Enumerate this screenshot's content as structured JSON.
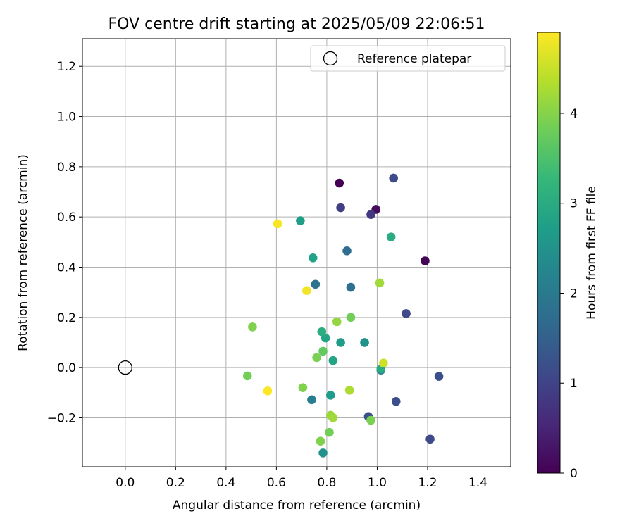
{
  "chart_data": {
    "type": "scatter",
    "title": "FOV centre drift starting at 2025/05/09 22:06:51",
    "xlabel": "Angular distance from reference (arcmin)",
    "ylabel": "Rotation from reference (arcmin)",
    "xlim": [
      -0.17,
      1.53
    ],
    "ylim": [
      -0.395,
      1.31
    ],
    "xticks": [
      0.0,
      0.2,
      0.4,
      0.6,
      0.8,
      1.0,
      1.2,
      1.4
    ],
    "yticks": [
      -0.2,
      0.0,
      0.2,
      0.4,
      0.6,
      0.8,
      1.0,
      1.2
    ],
    "xtick_labels": [
      "0.0",
      "0.2",
      "0.4",
      "0.6",
      "0.8",
      "1.0",
      "1.2",
      "1.4"
    ],
    "ytick_labels": [
      "−0.2",
      "0.0",
      "0.2",
      "0.4",
      "0.6",
      "0.8",
      "1.0",
      "1.2"
    ],
    "grid": true,
    "legend": {
      "position": "top-right",
      "label": "Reference platepar"
    },
    "reference_point": {
      "x": 0.0,
      "y": 0.0
    },
    "colorbar": {
      "label": "Hours from first FF file",
      "range": [
        0,
        4.9
      ],
      "ticks": [
        0,
        1,
        2,
        3,
        4
      ],
      "tick_labels": [
        "0",
        "1",
        "2",
        "3",
        "4"
      ],
      "colormap": "viridis"
    },
    "points": [
      {
        "x": 0.85,
        "y": 0.735,
        "c": 0.0
      },
      {
        "x": 1.19,
        "y": 0.425,
        "c": 0.05
      },
      {
        "x": 0.995,
        "y": 0.63,
        "c": 0.15
      },
      {
        "x": 0.975,
        "y": 0.61,
        "c": 0.8
      },
      {
        "x": 0.855,
        "y": 0.637,
        "c": 0.9
      },
      {
        "x": 1.065,
        "y": 0.755,
        "c": 1.1
      },
      {
        "x": 1.115,
        "y": 0.215,
        "c": 1.1
      },
      {
        "x": 1.21,
        "y": -0.285,
        "c": 1.1
      },
      {
        "x": 1.245,
        "y": -0.035,
        "c": 1.2
      },
      {
        "x": 1.075,
        "y": -0.135,
        "c": 1.2
      },
      {
        "x": 0.965,
        "y": -0.195,
        "c": 1.2
      },
      {
        "x": 0.88,
        "y": 0.465,
        "c": 1.75
      },
      {
        "x": 0.895,
        "y": 0.32,
        "c": 1.8
      },
      {
        "x": 0.755,
        "y": 0.332,
        "c": 1.85
      },
      {
        "x": 0.74,
        "y": -0.128,
        "c": 2.1
      },
      {
        "x": 1.015,
        "y": -0.01,
        "c": 2.1
      },
      {
        "x": 0.785,
        "y": -0.34,
        "c": 2.5
      },
      {
        "x": 0.95,
        "y": 0.1,
        "c": 2.5
      },
      {
        "x": 0.855,
        "y": 0.1,
        "c": 2.7
      },
      {
        "x": 0.815,
        "y": -0.11,
        "c": 2.7
      },
      {
        "x": 0.695,
        "y": 0.585,
        "c": 2.75
      },
      {
        "x": 0.745,
        "y": 0.437,
        "c": 2.8
      },
      {
        "x": 0.795,
        "y": 0.118,
        "c": 2.85
      },
      {
        "x": 0.825,
        "y": 0.028,
        "c": 2.85
      },
      {
        "x": 1.055,
        "y": 0.52,
        "c": 3.0
      },
      {
        "x": 0.78,
        "y": 0.143,
        "c": 3.05
      },
      {
        "x": 1.015,
        "y": -0.005,
        "c": 3.0
      },
      {
        "x": 0.785,
        "y": 0.065,
        "c": 3.7
      },
      {
        "x": 0.81,
        "y": -0.258,
        "c": 3.85
      },
      {
        "x": 0.895,
        "y": 0.2,
        "c": 3.85
      },
      {
        "x": 0.485,
        "y": -0.033,
        "c": 3.85
      },
      {
        "x": 0.975,
        "y": -0.21,
        "c": 3.9
      },
      {
        "x": 0.76,
        "y": 0.04,
        "c": 3.9
      },
      {
        "x": 0.705,
        "y": -0.08,
        "c": 3.95
      },
      {
        "x": 0.505,
        "y": 0.162,
        "c": 3.95
      },
      {
        "x": 0.775,
        "y": -0.293,
        "c": 3.95
      },
      {
        "x": 0.84,
        "y": 0.183,
        "c": 4.1
      },
      {
        "x": 0.815,
        "y": -0.19,
        "c": 4.15
      },
      {
        "x": 0.825,
        "y": -0.2,
        "c": 4.2
      },
      {
        "x": 1.01,
        "y": 0.337,
        "c": 4.2
      },
      {
        "x": 0.89,
        "y": -0.09,
        "c": 4.3
      },
      {
        "x": 1.025,
        "y": 0.018,
        "c": 4.55
      },
      {
        "x": 0.72,
        "y": 0.307,
        "c": 4.8
      },
      {
        "x": 0.605,
        "y": 0.573,
        "c": 4.85
      },
      {
        "x": 0.565,
        "y": -0.093,
        "c": 4.9
      }
    ]
  }
}
